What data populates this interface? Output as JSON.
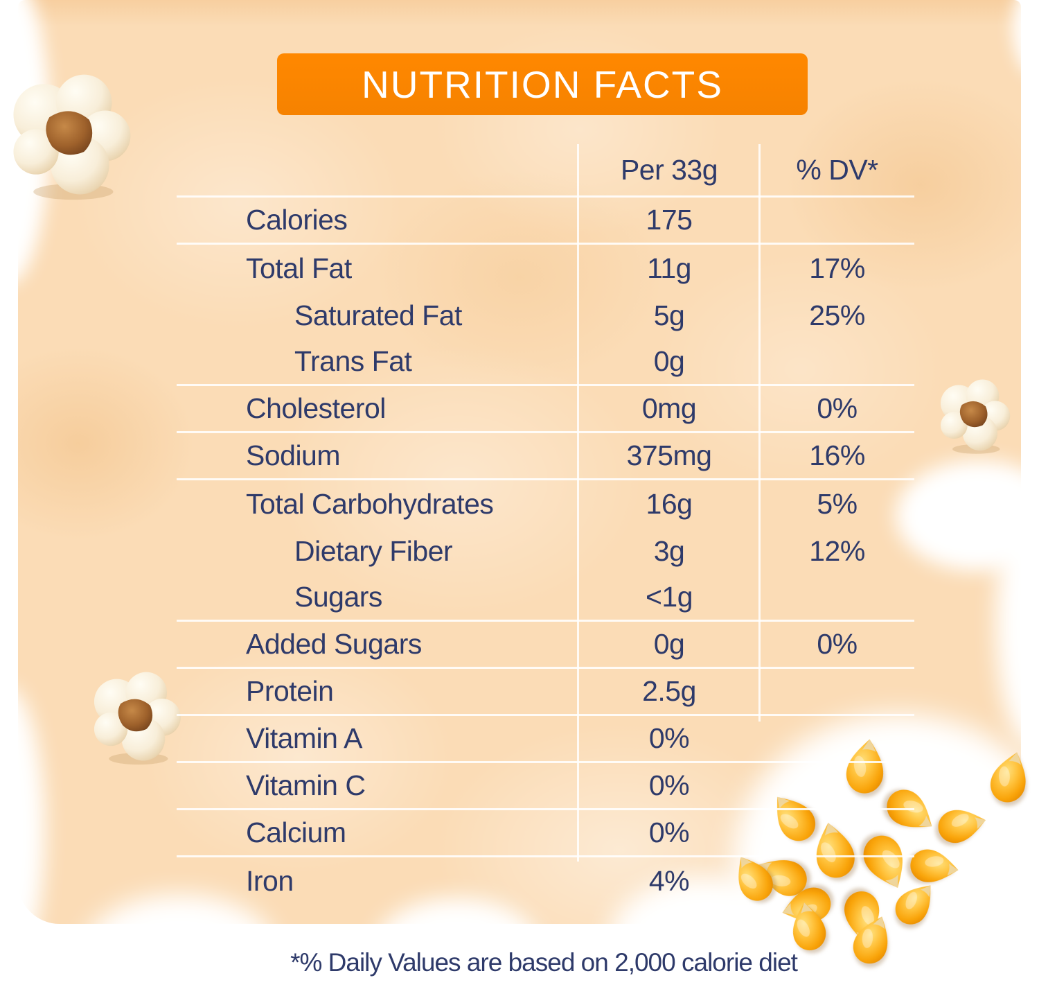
{
  "title": "NUTRITION FACTS",
  "columns": {
    "amount": "Per 33g",
    "dv": "% DV*"
  },
  "table": {
    "rows": [
      {
        "label": "Calories",
        "value": "175",
        "dv": "",
        "indent": false,
        "separator_after": true
      },
      {
        "label": "Total Fat",
        "value": "11g",
        "dv": "17%",
        "indent": false,
        "separator_after": false
      },
      {
        "label": "Saturated Fat",
        "value": "5g",
        "dv": "25%",
        "indent": true,
        "separator_after": false
      },
      {
        "label": "Trans Fat",
        "value": "0g",
        "dv": "",
        "indent": true,
        "separator_after": true
      },
      {
        "label": "Cholesterol",
        "value": "0mg",
        "dv": "0%",
        "indent": false,
        "separator_after": true
      },
      {
        "label": "Sodium",
        "value": "375mg",
        "dv": "16%",
        "indent": false,
        "separator_after": true
      },
      {
        "label": "Total Carbohydrates",
        "value": "16g",
        "dv": "5%",
        "indent": false,
        "separator_after": false
      },
      {
        "label": "Dietary Fiber",
        "value": "3g",
        "dv": "12%",
        "indent": true,
        "separator_after": false
      },
      {
        "label": "Sugars",
        "value": "<1g",
        "dv": "",
        "indent": true,
        "separator_after": true
      },
      {
        "label": "Added Sugars",
        "value": "0g",
        "dv": "0%",
        "indent": false,
        "separator_after": true
      },
      {
        "label": "Protein",
        "value": "2.5g",
        "dv": "",
        "indent": false,
        "separator_after": true
      },
      {
        "label": "Vitamin A",
        "value": "0%",
        "dv": "",
        "indent": false,
        "separator_after": true
      },
      {
        "label": "Vitamin C",
        "value": "0%",
        "dv": "",
        "indent": false,
        "separator_after": true
      },
      {
        "label": "Calcium",
        "value": "0%",
        "dv": "",
        "indent": false,
        "separator_after": true
      },
      {
        "label": "Iron",
        "value": "4%",
        "dv": "",
        "indent": false,
        "separator_after": false
      }
    ]
  },
  "footnote": "*% Daily Values are based on 2,000 calorie diet",
  "colors": {
    "accent_orange": "#ff8800",
    "text_navy": "#2e3a6a",
    "background_peach": "#fbdcb6"
  },
  "decorations": {
    "images": [
      "popcorn-top-left",
      "popcorn-right",
      "popcorn-bottom-left",
      "corn-kernels-pile",
      "corn-kernel-single"
    ]
  }
}
